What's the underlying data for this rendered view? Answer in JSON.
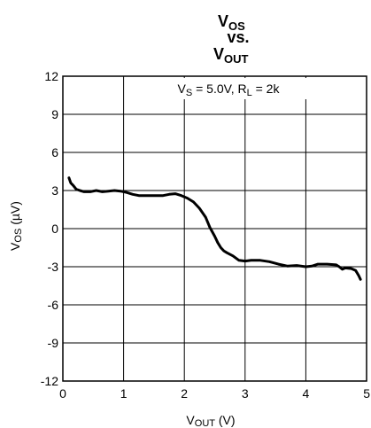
{
  "chart_data": {
    "type": "line",
    "title": {
      "line1_main": "V",
      "line1_sub": "OS",
      "line2": "vs.",
      "line3_main": "V",
      "line3_sub": "OUT"
    },
    "xlabel": {
      "main": "V",
      "sub": "OUT",
      "rest": " (V)"
    },
    "ylabel": {
      "main": "V",
      "sub": "OS",
      "rest": " (µV)"
    },
    "annotation": {
      "p1": "V",
      "s1": "S",
      "p2": " = 5.0V, R",
      "s2": "L",
      "p3": " = 2k"
    },
    "xlim": [
      0,
      5
    ],
    "ylim": [
      -12,
      12
    ],
    "x_ticks": [
      0,
      1,
      2,
      3,
      4,
      5
    ],
    "x_tick_labels": [
      "0",
      "1",
      "2",
      "3",
      "4",
      "5"
    ],
    "y_ticks": [
      12,
      9,
      6,
      3,
      0,
      -3,
      -6,
      -9,
      -12
    ],
    "y_tick_labels": [
      "12",
      "9",
      "6",
      "3",
      "0",
      "-3",
      "-6",
      "-9",
      "-12"
    ],
    "grid": "horizontal-and-vertical",
    "legend": "none",
    "series": [
      {
        "x": [
          0.1,
          0.13,
          0.17,
          0.22,
          0.28,
          0.35,
          0.45,
          0.55,
          0.65,
          0.75,
          0.85,
          0.95,
          1.05,
          1.15,
          1.25,
          1.35,
          1.5,
          1.65,
          1.75,
          1.85,
          1.95,
          2.05,
          2.15,
          2.25,
          2.35,
          2.42,
          2.5,
          2.55,
          2.6,
          2.65,
          2.7,
          2.8,
          2.9,
          3.0,
          3.1,
          3.25,
          3.4,
          3.55,
          3.7,
          3.85,
          4.0,
          4.1,
          4.2,
          4.35,
          4.5,
          4.55,
          4.6,
          4.65,
          4.75,
          4.82,
          4.87,
          4.9
        ],
        "y": [
          4.0,
          3.6,
          3.4,
          3.1,
          3.0,
          2.9,
          2.9,
          3.0,
          2.9,
          2.95,
          3.0,
          2.95,
          2.85,
          2.7,
          2.6,
          2.6,
          2.6,
          2.6,
          2.7,
          2.75,
          2.6,
          2.4,
          2.1,
          1.6,
          0.9,
          0.1,
          -0.6,
          -1.1,
          -1.5,
          -1.75,
          -1.9,
          -2.15,
          -2.5,
          -2.55,
          -2.5,
          -2.5,
          -2.6,
          -2.8,
          -2.95,
          -2.9,
          -3.0,
          -2.95,
          -2.8,
          -2.8,
          -2.85,
          -3.0,
          -3.2,
          -3.1,
          -3.15,
          -3.3,
          -3.7,
          -4.0
        ]
      }
    ]
  }
}
